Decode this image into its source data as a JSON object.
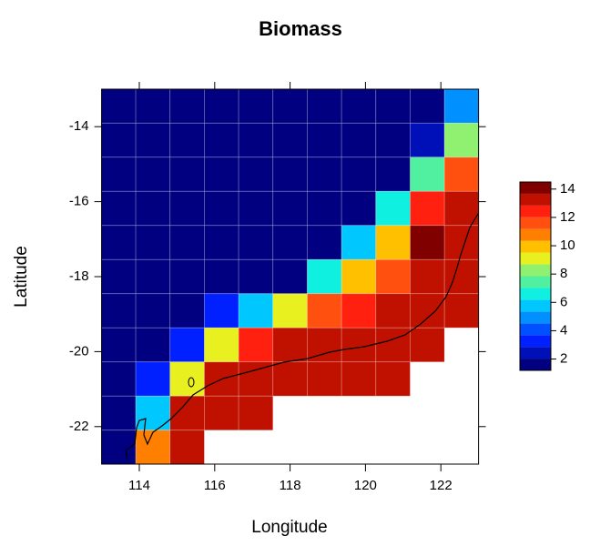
{
  "chart_data": {
    "type": "heatmap",
    "title": "Biomass",
    "xlabel": "Longitude",
    "ylabel": "Latitude",
    "x": [
      113.45,
      114.36,
      115.27,
      116.18,
      117.09,
      118.0,
      118.91,
      119.82,
      120.73,
      121.64,
      122.55
    ],
    "y": [
      -13.45,
      -14.36,
      -15.27,
      -16.18,
      -17.09,
      -18.0,
      -18.91,
      -19.82,
      -20.73,
      -21.64,
      -22.55
    ],
    "z": [
      [
        1.6,
        1.6,
        1.6,
        1.6,
        1.6,
        1.6,
        1.6,
        1.6,
        1.6,
        1.6,
        4.9
      ],
      [
        1.6,
        1.6,
        1.6,
        1.6,
        1.6,
        1.6,
        1.6,
        1.6,
        1.6,
        2.5,
        8.3
      ],
      [
        1.6,
        1.6,
        1.6,
        1.6,
        1.6,
        1.6,
        1.6,
        1.6,
        1.6,
        7.4,
        11.6
      ],
      [
        1.6,
        1.6,
        1.6,
        1.6,
        1.6,
        1.6,
        1.6,
        1.6,
        6.6,
        12.4,
        13.3
      ],
      [
        1.6,
        1.6,
        1.6,
        1.6,
        1.6,
        1.6,
        1.6,
        5.8,
        9.9,
        14.1,
        13.3
      ],
      [
        1.6,
        1.6,
        1.6,
        1.6,
        1.6,
        1.6,
        6.6,
        9.9,
        11.6,
        13.3,
        13.3
      ],
      [
        1.6,
        1.6,
        1.6,
        3.3,
        5.8,
        9.1,
        11.6,
        12.4,
        13.3,
        13.3,
        13.3
      ],
      [
        1.6,
        1.6,
        3.3,
        9.1,
        12.4,
        13.3,
        13.3,
        13.3,
        13.3,
        13.3,
        null
      ],
      [
        1.6,
        3.3,
        9.1,
        13.3,
        13.3,
        13.3,
        13.3,
        13.3,
        13.3,
        null,
        null
      ],
      [
        1.6,
        5.8,
        13.3,
        13.3,
        13.3,
        null,
        null,
        null,
        null,
        null,
        null
      ],
      [
        1.6,
        10.8,
        13.3,
        null,
        null,
        null,
        null,
        null,
        null,
        null,
        null
      ]
    ],
    "xlim": [
      113,
      123
    ],
    "ylim": [
      -23,
      -13
    ],
    "xticks": [
      114,
      116,
      118,
      120,
      122
    ],
    "yticks": [
      -14,
      -16,
      -18,
      -20,
      -22
    ],
    "colorbar": {
      "lim": [
        1.2,
        14.5
      ],
      "ticks": [
        2,
        4,
        6,
        8,
        10,
        12,
        14
      ],
      "colors": [
        "#000080",
        "#0010b8",
        "#0020ff",
        "#0050ff",
        "#0090ff",
        "#00c8ff",
        "#10f0e0",
        "#50f0a0",
        "#90f070",
        "#e8f020",
        "#ffc000",
        "#ff8000",
        "#ff5010",
        "#ff2010",
        "#c01000",
        "#800000"
      ]
    }
  }
}
